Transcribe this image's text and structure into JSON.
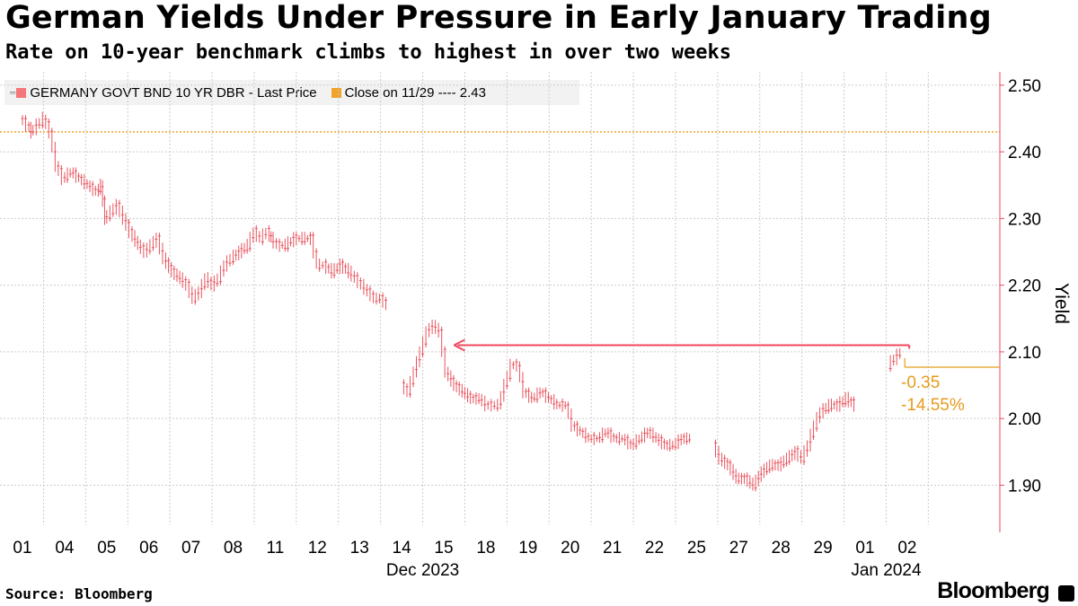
{
  "header": {
    "title": "German Yields Under Pressure in Early January Trading",
    "subtitle": "Rate on 10-year benchmark climbs to highest in over two weeks"
  },
  "legend": {
    "series_label": "GERMANY GOVT BND 10 YR DBR - Last Price",
    "close_label": "Close on 11/29 ---- 2.43",
    "series_color": "#f4777a",
    "close_color": "#f0a22a"
  },
  "footer": {
    "source": "Source: Bloomberg",
    "brand": "Bloomberg"
  },
  "colors": {
    "series": "#e8545e",
    "close_line": "#f0a22a",
    "arrow": "#ef4a5f",
    "axis": "#ef4a5f",
    "grid": "#cccccc",
    "annotation": "#e89a1e"
  },
  "chart_data": {
    "type": "line",
    "title": "German Yields Under Pressure in Early January Trading",
    "subtitle": "Rate on 10-year benchmark climbs to highest in over two weeks",
    "xlabel": "",
    "ylabel": "Yield",
    "y_axis_side": "right",
    "ylim": [
      1.84,
      2.52
    ],
    "yticks": [
      1.9,
      2.0,
      2.1,
      2.2,
      2.3,
      2.4,
      2.5
    ],
    "ytick_labels": [
      "1.90",
      "2.00",
      "2.10",
      "2.20",
      "2.30",
      "2.40",
      "2.50"
    ],
    "x_categories": [
      "01",
      "04",
      "05",
      "06",
      "07",
      "08",
      "11",
      "12",
      "13",
      "14",
      "15",
      "18",
      "19",
      "20",
      "21",
      "22",
      "25",
      "27",
      "28",
      "29",
      "01",
      "02"
    ],
    "x_group_labels": [
      {
        "label": "Dec 2023",
        "at_index": 9.5
      },
      {
        "label": "Jan 2024",
        "at_index": 20.5
      }
    ],
    "grid": true,
    "series": [
      {
        "name": "GERMANY GOVT BND 10 YR DBR - Last Price",
        "style": "intraday high-low ticks",
        "points": [
          [
            0.0,
            2.45
          ],
          [
            0.15,
            2.44
          ],
          [
            0.25,
            2.43
          ],
          [
            0.4,
            2.44
          ],
          [
            0.55,
            2.45
          ],
          [
            0.7,
            2.43
          ],
          [
            0.85,
            2.38
          ],
          [
            1.0,
            2.36
          ],
          [
            1.2,
            2.37
          ],
          [
            1.4,
            2.36
          ],
          [
            1.6,
            2.35
          ],
          [
            1.8,
            2.34
          ],
          [
            1.9,
            2.35
          ],
          [
            2.0,
            2.3
          ],
          [
            2.15,
            2.31
          ],
          [
            2.3,
            2.32
          ],
          [
            2.45,
            2.3
          ],
          [
            2.6,
            2.28
          ],
          [
            2.8,
            2.26
          ],
          [
            2.95,
            2.25
          ],
          [
            3.1,
            2.26
          ],
          [
            3.25,
            2.27
          ],
          [
            3.4,
            2.24
          ],
          [
            3.6,
            2.22
          ],
          [
            3.8,
            2.21
          ],
          [
            3.95,
            2.2
          ],
          [
            4.1,
            2.18
          ],
          [
            4.25,
            2.19
          ],
          [
            4.4,
            2.21
          ],
          [
            4.55,
            2.2
          ],
          [
            4.7,
            2.21
          ],
          [
            4.85,
            2.23
          ],
          [
            5.0,
            2.24
          ],
          [
            5.2,
            2.25
          ],
          [
            5.4,
            2.26
          ],
          [
            5.55,
            2.28
          ],
          [
            5.7,
            2.27
          ],
          [
            5.85,
            2.28
          ],
          [
            5.95,
            2.27
          ],
          [
            6.1,
            2.26
          ],
          [
            6.3,
            2.26
          ],
          [
            6.5,
            2.27
          ],
          [
            6.7,
            2.27
          ],
          [
            6.9,
            2.27
          ],
          [
            7.05,
            2.23
          ],
          [
            7.2,
            2.23
          ],
          [
            7.4,
            2.22
          ],
          [
            7.6,
            2.23
          ],
          [
            7.8,
            2.22
          ],
          [
            7.95,
            2.21
          ],
          [
            8.1,
            2.2
          ],
          [
            8.25,
            2.19
          ],
          [
            8.4,
            2.18
          ],
          [
            8.55,
            2.18
          ],
          [
            8.7,
            2.17
          ],
          [
            9.05,
            2.05
          ],
          [
            9.2,
            2.04
          ],
          [
            9.35,
            2.07
          ],
          [
            9.5,
            2.1
          ],
          [
            9.65,
            2.13
          ],
          [
            9.8,
            2.14
          ],
          [
            9.95,
            2.13
          ],
          [
            10.1,
            2.07
          ],
          [
            10.3,
            2.05
          ],
          [
            10.5,
            2.04
          ],
          [
            10.7,
            2.03
          ],
          [
            10.9,
            2.03
          ],
          [
            11.05,
            2.02
          ],
          [
            11.2,
            2.02
          ],
          [
            11.35,
            2.02
          ],
          [
            11.5,
            2.05
          ],
          [
            11.65,
            2.08
          ],
          [
            11.8,
            2.08
          ],
          [
            11.95,
            2.04
          ],
          [
            12.15,
            2.03
          ],
          [
            12.35,
            2.04
          ],
          [
            12.55,
            2.03
          ],
          [
            12.75,
            2.02
          ],
          [
            12.95,
            2.02
          ],
          [
            13.1,
            1.99
          ],
          [
            13.3,
            1.98
          ],
          [
            13.5,
            1.97
          ],
          [
            13.7,
            1.97
          ],
          [
            13.9,
            1.98
          ],
          [
            14.1,
            1.97
          ],
          [
            14.3,
            1.97
          ],
          [
            14.5,
            1.96
          ],
          [
            14.7,
            1.97
          ],
          [
            14.9,
            1.98
          ],
          [
            15.1,
            1.97
          ],
          [
            15.3,
            1.96
          ],
          [
            15.5,
            1.96
          ],
          [
            15.7,
            1.97
          ],
          [
            15.9,
            1.97
          ],
          [
            16.45,
            1.96
          ],
          [
            16.6,
            1.94
          ],
          [
            16.8,
            1.93
          ],
          [
            17.0,
            1.91
          ],
          [
            17.2,
            1.91
          ],
          [
            17.4,
            1.9
          ],
          [
            17.6,
            1.92
          ],
          [
            17.8,
            1.93
          ],
          [
            18.0,
            1.93
          ],
          [
            18.2,
            1.94
          ],
          [
            18.4,
            1.95
          ],
          [
            18.55,
            1.94
          ],
          [
            18.7,
            1.96
          ],
          [
            18.85,
            1.99
          ],
          [
            19.0,
            2.01
          ],
          [
            19.2,
            2.02
          ],
          [
            19.4,
            2.02
          ],
          [
            19.6,
            2.03
          ],
          [
            19.8,
            2.02
          ],
          [
            20.6,
            2.08
          ],
          [
            20.75,
            2.09
          ],
          [
            20.9,
            2.1
          ]
        ]
      }
    ],
    "reference_lines": [
      {
        "label": "Close on 11/29",
        "value": 2.43,
        "style": "dotted"
      }
    ],
    "annotations": [
      {
        "type": "arrow",
        "from_index": 20.9,
        "to_index": 10.2,
        "value": 2.11
      },
      {
        "type": "text",
        "text": "-0.35"
      },
      {
        "type": "text",
        "text": "-14.55%"
      },
      {
        "type": "last_value_marker",
        "value": 2.077
      }
    ]
  }
}
